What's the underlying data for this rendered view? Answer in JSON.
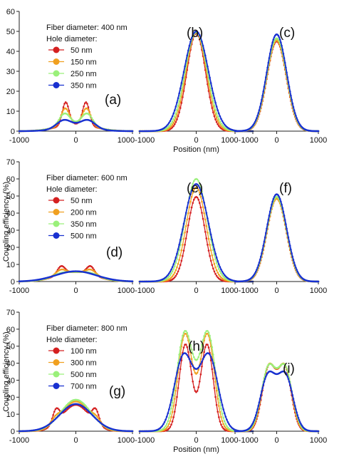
{
  "chart_data": {
    "type": "line",
    "x_axis_label": "Position (nm)",
    "y_axis_label": "Coupling efficiency (%)",
    "xlim": [
      -1000,
      1000
    ],
    "x_ticks": [
      -1000,
      0,
      1000
    ],
    "x_tick_labels": [
      "-1000",
      "0",
      "1000"
    ],
    "colors": {
      "red": "#d42020",
      "orange": "#f0a020",
      "green": "#9af07a",
      "blue": "#1830d0"
    },
    "rows": [
      {
        "ylim": [
          0,
          60
        ],
        "y_ticks": [
          0,
          10,
          20,
          30,
          40,
          50,
          60
        ],
        "y_ticks_text": [
          "0",
          "10",
          "20",
          "30",
          "40",
          "50",
          "60"
        ],
        "show_ylabel": false,
        "legend_title_1": "Fiber diameter: 400 nm",
        "legend_title_2": "Hole diameter:",
        "legend_items": [
          {
            "label": "50 nm",
            "color": "red"
          },
          {
            "label": "150 nm",
            "color": "orange"
          },
          {
            "label": "250 nm",
            "color": "green"
          },
          {
            "label": "350 nm",
            "color": "blue"
          }
        ],
        "panels": [
          {
            "label": "(a)",
            "series": [
              {
                "name": "50 nm",
                "color": "red",
                "peaks": [
                  {
                    "c": -180,
                    "a": 11.5,
                    "w": 60
                  },
                  {
                    "c": 180,
                    "a": 11.5,
                    "w": 60
                  }
                ],
                "base": [
                  {
                    "c": 0,
                    "a": 3.5,
                    "w": 320
                  }
                ]
              },
              {
                "name": "150 nm",
                "color": "orange",
                "peaks": [
                  {
                    "c": -190,
                    "a": 8.5,
                    "w": 75
                  },
                  {
                    "c": 190,
                    "a": 8.5,
                    "w": 75
                  }
                ],
                "base": [
                  {
                    "c": 0,
                    "a": 3.5,
                    "w": 320
                  }
                ]
              },
              {
                "name": "250 nm",
                "color": "green",
                "peaks": [
                  {
                    "c": -200,
                    "a": 6,
                    "w": 95
                  },
                  {
                    "c": 200,
                    "a": 6,
                    "w": 95
                  }
                ],
                "base": [
                  {
                    "c": 0,
                    "a": 3.5,
                    "w": 320
                  }
                ]
              },
              {
                "name": "350 nm",
                "color": "blue",
                "peaks": [
                  {
                    "c": -210,
                    "a": 4,
                    "w": 130
                  },
                  {
                    "c": 210,
                    "a": 4,
                    "w": 130
                  }
                ],
                "base": [
                  {
                    "c": 0,
                    "a": 2,
                    "w": 320
                  }
                ]
              }
            ]
          },
          {
            "label": "(b)",
            "series": [
              {
                "name": "50 nm",
                "color": "red",
                "peaks": [
                  {
                    "c": 0,
                    "a": 49,
                    "w": 165
                  }
                ]
              },
              {
                "name": "150 nm",
                "color": "orange",
                "peaks": [
                  {
                    "c": 0,
                    "a": 49.5,
                    "w": 180
                  }
                ]
              },
              {
                "name": "250 nm",
                "color": "green",
                "peaks": [
                  {
                    "c": 0,
                    "a": 49.5,
                    "w": 195
                  }
                ]
              },
              {
                "name": "350 nm",
                "color": "blue",
                "peaks": [
                  {
                    "c": 0,
                    "a": 50,
                    "w": 215
                  }
                ]
              }
            ]
          },
          {
            "label": "(c)",
            "series": [
              {
                "name": "50 nm",
                "color": "red",
                "peaks": [
                  {
                    "c": 0,
                    "a": 45,
                    "w": 230
                  }
                ]
              },
              {
                "name": "150 nm",
                "color": "orange",
                "peaks": [
                  {
                    "c": 0,
                    "a": 45.5,
                    "w": 232
                  }
                ]
              },
              {
                "name": "250 nm",
                "color": "green",
                "peaks": [
                  {
                    "c": 0,
                    "a": 46.5,
                    "w": 236
                  }
                ]
              },
              {
                "name": "350 nm",
                "color": "blue",
                "peaks": [
                  {
                    "c": 0,
                    "a": 48.5,
                    "w": 240
                  }
                ]
              }
            ]
          }
        ]
      },
      {
        "ylim": [
          0,
          70
        ],
        "y_ticks": [
          0,
          10,
          20,
          30,
          40,
          50,
          60,
          70
        ],
        "y_ticks_text": [
          "0",
          "10",
          "20",
          "30",
          "40",
          "50",
          "60",
          "70"
        ],
        "show_ylabel": true,
        "legend_title_1": "Fiber diameter: 600 nm",
        "legend_title_2": "Hole diameter:",
        "legend_items": [
          {
            "label": "50 nm",
            "color": "red"
          },
          {
            "label": "200 nm",
            "color": "orange"
          },
          {
            "label": "350 nm",
            "color": "green"
          },
          {
            "label": "500 nm",
            "color": "blue"
          }
        ],
        "panels": [
          {
            "label": "(d)",
            "series": [
              {
                "name": "50 nm",
                "color": "red",
                "peaks": [
                  {
                    "c": -260,
                    "a": 5,
                    "w": 70
                  },
                  {
                    "c": 260,
                    "a": 5,
                    "w": 70
                  }
                ],
                "base": [
                  {
                    "c": 0,
                    "a": 5.5,
                    "w": 330
                  }
                ]
              },
              {
                "name": "200 nm",
                "color": "orange",
                "peaks": [
                  {
                    "c": -270,
                    "a": 3,
                    "w": 90
                  },
                  {
                    "c": 270,
                    "a": 3,
                    "w": 90
                  }
                ],
                "base": [
                  {
                    "c": 0,
                    "a": 5.5,
                    "w": 330
                  }
                ]
              },
              {
                "name": "350 nm",
                "color": "green",
                "peaks": [
                  {
                    "c": -280,
                    "a": 1,
                    "w": 120
                  },
                  {
                    "c": 280,
                    "a": 1,
                    "w": 120
                  }
                ],
                "base": [
                  {
                    "c": 0,
                    "a": 5.5,
                    "w": 340
                  }
                ]
              },
              {
                "name": "500 nm",
                "color": "blue",
                "peaks": [],
                "base": [
                  {
                    "c": 0,
                    "a": 6,
                    "w": 360
                  }
                ]
              }
            ]
          },
          {
            "label": "(e)",
            "series": [
              {
                "name": "50 nm",
                "color": "red",
                "peaks": [
                  {
                    "c": 0,
                    "a": 49.5,
                    "w": 155
                  }
                ]
              },
              {
                "name": "200 nm",
                "color": "orange",
                "peaks": [
                  {
                    "c": 0,
                    "a": 55,
                    "w": 175
                  }
                ]
              },
              {
                "name": "350 nm",
                "color": "green",
                "peaks": [
                  {
                    "c": 0,
                    "a": 60,
                    "w": 195
                  }
                ]
              },
              {
                "name": "500 nm",
                "color": "blue",
                "peaks": [
                  {
                    "c": 0,
                    "a": 57,
                    "w": 215
                  }
                ]
              }
            ]
          },
          {
            "label": "(f)",
            "series": [
              {
                "name": "50 nm",
                "color": "red",
                "peaks": [
                  {
                    "c": 0,
                    "a": 48.5,
                    "w": 230
                  }
                ]
              },
              {
                "name": "200 nm",
                "color": "orange",
                "peaks": [
                  {
                    "c": 0,
                    "a": 48.5,
                    "w": 232
                  }
                ]
              },
              {
                "name": "350 nm",
                "color": "green",
                "peaks": [
                  {
                    "c": 0,
                    "a": 49.5,
                    "w": 236
                  }
                ]
              },
              {
                "name": "500 nm",
                "color": "blue",
                "peaks": [
                  {
                    "c": 0,
                    "a": 51,
                    "w": 240
                  }
                ]
              }
            ]
          }
        ]
      },
      {
        "ylim": [
          0,
          70
        ],
        "y_ticks": [
          0,
          10,
          20,
          30,
          40,
          50,
          60,
          70
        ],
        "y_ticks_text": [
          "0",
          "10",
          "20",
          "30",
          "40",
          "50",
          "60",
          "70"
        ],
        "show_ylabel": true,
        "legend_title_1": "Fiber diameter: 800 nm",
        "legend_title_2": "Hole diameter:",
        "legend_items": [
          {
            "label": "100 nm",
            "color": "red"
          },
          {
            "label": "300 nm",
            "color": "orange"
          },
          {
            "label": "500 nm",
            "color": "green"
          },
          {
            "label": "700 nm",
            "color": "blue"
          }
        ],
        "panels": [
          {
            "label": "(g)",
            "series": [
              {
                "name": "100 nm",
                "color": "red",
                "peaks": [
                  {
                    "c": -350,
                    "a": 8,
                    "w": 60
                  },
                  {
                    "c": 350,
                    "a": 8,
                    "w": 60
                  }
                ],
                "base": [
                  {
                    "c": 0,
                    "a": 15.5,
                    "w": 240
                  }
                ]
              },
              {
                "name": "300 nm",
                "color": "orange",
                "peaks": [
                  {
                    "c": -360,
                    "a": 3,
                    "w": 80
                  },
                  {
                    "c": 360,
                    "a": 3,
                    "w": 80
                  }
                ],
                "base": [
                  {
                    "c": 0,
                    "a": 17.5,
                    "w": 250
                  }
                ]
              },
              {
                "name": "500 nm",
                "color": "green",
                "peaks": [],
                "base": [
                  {
                    "c": 0,
                    "a": 18.5,
                    "w": 265
                  }
                ]
              },
              {
                "name": "700 nm",
                "color": "blue",
                "peaks": [],
                "base": [
                  {
                    "c": 0,
                    "a": 16,
                    "w": 285
                  }
                ]
              }
            ]
          },
          {
            "label": "(h)",
            "series": [
              {
                "name": "100 nm",
                "color": "red",
                "peaks": [
                  {
                    "c": -190,
                    "a": 51,
                    "w": 110
                  },
                  {
                    "c": 190,
                    "a": 51,
                    "w": 110
                  }
                ]
              },
              {
                "name": "300 nm",
                "color": "orange",
                "peaks": [
                  {
                    "c": -195,
                    "a": 57,
                    "w": 125
                  },
                  {
                    "c": 195,
                    "a": 57,
                    "w": 125
                  }
                ]
              },
              {
                "name": "500 nm",
                "color": "green",
                "peaks": [
                  {
                    "c": -200,
                    "a": 58,
                    "w": 140
                  },
                  {
                    "c": 200,
                    "a": 58,
                    "w": 140
                  }
                ]
              },
              {
                "name": "700 nm",
                "color": "blue",
                "peaks": [
                  {
                    "c": -220,
                    "a": 44.5,
                    "w": 165
                  },
                  {
                    "c": 220,
                    "a": 44.5,
                    "w": 165
                  }
                ]
              }
            ]
          },
          {
            "label": "(i)",
            "series": [
              {
                "name": "100 nm",
                "color": "red",
                "peaks": [
                  {
                    "c": -190,
                    "a": 37,
                    "w": 160
                  },
                  {
                    "c": 190,
                    "a": 37,
                    "w": 160
                  }
                ]
              },
              {
                "name": "300 nm",
                "color": "orange",
                "peaks": [
                  {
                    "c": -195,
                    "a": 37,
                    "w": 165
                  },
                  {
                    "c": 195,
                    "a": 37,
                    "w": 165
                  }
                ]
              },
              {
                "name": "500 nm",
                "color": "green",
                "peaks": [
                  {
                    "c": -200,
                    "a": 36.5,
                    "w": 172
                  },
                  {
                    "c": 200,
                    "a": 36.5,
                    "w": 172
                  }
                ]
              },
              {
                "name": "700 nm",
                "color": "blue",
                "peaks": [
                  {
                    "c": -210,
                    "a": 32,
                    "w": 185
                  },
                  {
                    "c": 210,
                    "a": 32,
                    "w": 185
                  }
                ]
              }
            ]
          }
        ]
      }
    ]
  }
}
